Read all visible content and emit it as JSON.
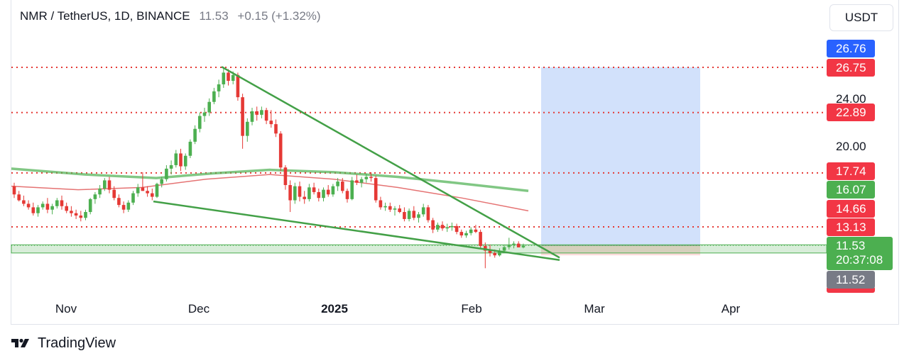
{
  "header": {
    "symbol": "NMR / TetherUS, 1D, BINANCE",
    "last": "11.53",
    "change": "+0.15 (+1.32%)"
  },
  "unit_button": "USDT",
  "price_labels": {
    "l1": "26.76",
    "l2": "26.75",
    "l3": "22.89",
    "l4": "17.74",
    "l5": "16.07",
    "l6": "14.66",
    "l7": "13.13",
    "l8": "11.52"
  },
  "axis_ticks": {
    "t24": "24.00",
    "t20": "20.00"
  },
  "current_price": {
    "price": "11.53",
    "countdown": "20:37:08"
  },
  "x_labels": {
    "nov": "Nov",
    "dec": "Dec",
    "y2025": "2025",
    "feb": "Feb",
    "mar": "Mar",
    "apr": "Apr"
  },
  "footer": {
    "brand": "TradingView",
    "logo_icon": "tradingview-logo-icon"
  },
  "colors": {
    "up": "#4caf50",
    "down": "#e53935",
    "blue_label": "#2962ff",
    "red_label": "#f23645",
    "green_label": "#4caf50",
    "gray_label": "#787b86",
    "target_zone": "#d2e1fb",
    "stop_zone": "#fcdada"
  },
  "chart_data": {
    "type": "candlestick",
    "title": "NMR / TetherUS, 1D, BINANCE",
    "x_axis": [
      "Nov",
      "Dec",
      "2025",
      "Feb",
      "Mar",
      "Apr"
    ],
    "y_ticks": [
      20.0,
      24.0
    ],
    "horizontal_levels": [
      26.75,
      22.89,
      17.74,
      13.13
    ],
    "moving_averages": [
      {
        "color": "#81c784",
        "end_value": 16.07
      },
      {
        "color": "#e57373",
        "end_value": 14.66
      }
    ],
    "support_zone": [
      10.9,
      11.6
    ],
    "falling_wedge": {
      "upper_from": 26.8,
      "upper_to": 10.5,
      "lower_from": 15.3,
      "lower_to": 10.3
    },
    "position_tool": {
      "target": 26.76,
      "entry": 11.53,
      "stop": 10.7
    },
    "last_price": 11.53,
    "candles_ohlc": [
      [
        16.6,
        16.9,
        15.6,
        15.9
      ],
      [
        15.9,
        16.2,
        15.3,
        15.4
      ],
      [
        15.4,
        15.8,
        14.9,
        15.1
      ],
      [
        15.1,
        15.4,
        14.6,
        14.8
      ],
      [
        14.8,
        15.2,
        14.1,
        14.3
      ],
      [
        14.3,
        15.0,
        14.0,
        14.8
      ],
      [
        14.8,
        15.3,
        14.6,
        15.1
      ],
      [
        15.1,
        15.6,
        14.3,
        14.6
      ],
      [
        14.6,
        15.1,
        14.2,
        14.9
      ],
      [
        14.9,
        15.6,
        14.7,
        15.4
      ],
      [
        15.4,
        15.8,
        14.6,
        14.9
      ],
      [
        14.9,
        15.2,
        14.3,
        14.5
      ],
      [
        14.5,
        14.9,
        14.0,
        14.3
      ],
      [
        14.3,
        14.6,
        13.8,
        14.1
      ],
      [
        14.1,
        14.5,
        13.6,
        13.9
      ],
      [
        13.9,
        14.6,
        13.7,
        14.4
      ],
      [
        14.4,
        15.6,
        14.2,
        15.5
      ],
      [
        15.5,
        16.1,
        15.1,
        15.9
      ],
      [
        15.9,
        16.7,
        15.6,
        16.4
      ],
      [
        16.4,
        17.3,
        16.2,
        17.1
      ],
      [
        17.1,
        17.4,
        16.0,
        16.3
      ],
      [
        16.3,
        16.6,
        15.4,
        15.6
      ],
      [
        15.6,
        15.9,
        14.8,
        15.0
      ],
      [
        15.0,
        15.3,
        14.3,
        14.6
      ],
      [
        14.6,
        15.4,
        14.4,
        15.2
      ],
      [
        15.2,
        16.2,
        15.0,
        16.0
      ],
      [
        16.0,
        16.8,
        15.7,
        16.5
      ],
      [
        16.5,
        17.8,
        16.2,
        16.2
      ],
      [
        16.2,
        16.6,
        15.7,
        16.0
      ],
      [
        16.0,
        16.4,
        15.4,
        15.7
      ],
      [
        15.7,
        16.9,
        15.6,
        16.8
      ],
      [
        16.8,
        17.4,
        16.5,
        17.2
      ],
      [
        17.2,
        18.4,
        17.0,
        18.1
      ],
      [
        18.1,
        18.8,
        17.6,
        18.4
      ],
      [
        18.4,
        19.7,
        18.2,
        19.4
      ],
      [
        19.4,
        19.8,
        17.9,
        18.3
      ],
      [
        18.3,
        19.4,
        18.0,
        19.2
      ],
      [
        19.2,
        20.6,
        19.0,
        20.4
      ],
      [
        20.4,
        21.8,
        20.2,
        21.5
      ],
      [
        21.5,
        22.9,
        21.2,
        22.6
      ],
      [
        22.6,
        23.3,
        22.1,
        22.9
      ],
      [
        22.9,
        24.1,
        22.6,
        23.8
      ],
      [
        23.8,
        25.0,
        23.6,
        24.7
      ],
      [
        24.7,
        25.7,
        24.2,
        25.3
      ],
      [
        25.3,
        26.8,
        25.0,
        26.3
      ],
      [
        26.3,
        26.6,
        25.2,
        25.6
      ],
      [
        25.6,
        26.4,
        25.3,
        26.1
      ],
      [
        26.1,
        26.3,
        23.9,
        24.2
      ],
      [
        24.2,
        24.5,
        19.8,
        20.9
      ],
      [
        20.9,
        22.4,
        20.4,
        22.1
      ],
      [
        22.1,
        23.3,
        21.8,
        23.0
      ],
      [
        23.0,
        23.4,
        22.2,
        22.7
      ],
      [
        22.7,
        23.4,
        22.4,
        23.1
      ],
      [
        23.1,
        23.3,
        21.9,
        22.2
      ],
      [
        22.2,
        23.1,
        21.6,
        21.9
      ],
      [
        21.9,
        22.3,
        20.8,
        21.1
      ],
      [
        21.1,
        21.3,
        17.9,
        18.2
      ],
      [
        18.2,
        18.4,
        16.3,
        16.7
      ],
      [
        16.7,
        17.1,
        14.4,
        15.4
      ],
      [
        15.4,
        16.9,
        15.1,
        16.6
      ],
      [
        16.6,
        17.0,
        15.3,
        15.7
      ],
      [
        15.7,
        16.2,
        15.1,
        15.5
      ],
      [
        15.5,
        16.8,
        15.3,
        16.5
      ],
      [
        16.5,
        16.9,
        15.9,
        16.1
      ],
      [
        16.1,
        16.4,
        15.3,
        15.6
      ],
      [
        15.6,
        16.5,
        15.3,
        16.3
      ],
      [
        16.3,
        16.7,
        15.7,
        15.9
      ],
      [
        15.9,
        16.8,
        15.7,
        16.6
      ],
      [
        16.6,
        17.3,
        16.2,
        17.0
      ],
      [
        17.0,
        17.3,
        16.0,
        16.2
      ],
      [
        16.2,
        16.4,
        15.2,
        15.5
      ],
      [
        15.5,
        17.4,
        15.4,
        17.1
      ],
      [
        17.1,
        17.6,
        16.7,
        16.9
      ],
      [
        16.9,
        17.4,
        16.5,
        17.2
      ],
      [
        17.2,
        17.7,
        16.9,
        17.4
      ],
      [
        17.4,
        17.8,
        17.0,
        17.3
      ],
      [
        17.3,
        17.5,
        15.2,
        15.4
      ],
      [
        15.4,
        15.7,
        14.6,
        14.8
      ],
      [
        14.8,
        15.2,
        14.5,
        14.9
      ],
      [
        14.9,
        15.2,
        14.4,
        14.6
      ],
      [
        14.6,
        14.9,
        14.1,
        14.7
      ],
      [
        14.7,
        15.0,
        14.3,
        14.4
      ],
      [
        14.4,
        14.8,
        13.6,
        13.8
      ],
      [
        13.8,
        14.7,
        13.6,
        14.5
      ],
      [
        14.5,
        14.9,
        13.7,
        13.9
      ],
      [
        13.9,
        14.4,
        13.5,
        14.2
      ],
      [
        14.2,
        15.1,
        14.0,
        14.8
      ],
      [
        14.8,
        15.0,
        13.5,
        13.7
      ],
      [
        13.7,
        13.9,
        12.6,
        12.9
      ],
      [
        12.9,
        13.5,
        12.7,
        13.3
      ],
      [
        13.3,
        13.6,
        12.8,
        13.0
      ],
      [
        13.0,
        13.4,
        12.7,
        13.1
      ],
      [
        13.1,
        13.5,
        12.8,
        13.2
      ],
      [
        13.2,
        13.4,
        12.5,
        12.7
      ],
      [
        12.7,
        12.9,
        12.2,
        12.4
      ],
      [
        12.4,
        12.8,
        12.2,
        12.6
      ],
      [
        12.6,
        13.1,
        12.4,
        12.9
      ],
      [
        12.9,
        13.3,
        12.6,
        12.7
      ],
      [
        12.7,
        12.9,
        11.3,
        11.5
      ],
      [
        11.5,
        11.8,
        9.6,
        11.1
      ],
      [
        11.1,
        11.6,
        10.6,
        10.9
      ],
      [
        10.9,
        11.2,
        10.5,
        10.7
      ],
      [
        10.7,
        11.3,
        10.6,
        11.1
      ],
      [
        11.1,
        11.6,
        10.9,
        11.4
      ],
      [
        11.4,
        12.2,
        11.2,
        11.6
      ],
      [
        11.6,
        11.9,
        11.3,
        11.7
      ],
      [
        11.7,
        11.9,
        11.4,
        11.38
      ],
      [
        11.38,
        11.7,
        11.3,
        11.53
      ]
    ]
  }
}
